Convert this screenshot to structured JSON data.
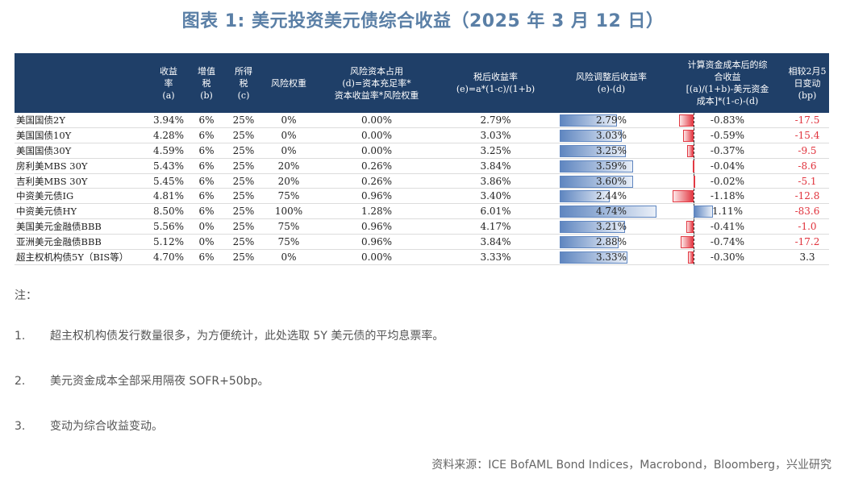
{
  "title": "图表 1:   美元投资美元债综合收益（2025 年 3 月 12 日）",
  "table": {
    "headers": [
      "",
      "收益\n率\n(a)",
      "增值\n税\n(b)",
      "所得\n税\n(c)",
      "风险权重",
      "风险资本占用\n(d)=资本充足率*\n资本收益率*风险权重",
      "税后收益率\n(e)=a*(1-c)/(1+b)",
      "风险调整后收益率\n(e)-(d)",
      "计算资金成本后的综\n合收益\n[(a)/(1+b)-美元资金\n成本]*(1-c)-(d)",
      "相较2月5\n日变动\n(bp)"
    ],
    "rows": [
      {
        "name": "美国国债2Y",
        "a": "3.94%",
        "b": "6%",
        "c": "25%",
        "w": "0%",
        "d": "0.00%",
        "e": "2.79%",
        "adj": "2.79%",
        "adj_v": 2.79,
        "comp": "-0.83%",
        "comp_v": -0.83,
        "chg": "-17.5",
        "chg_neg": true
      },
      {
        "name": "美国国债10Y",
        "a": "4.28%",
        "b": "6%",
        "c": "25%",
        "w": "0%",
        "d": "0.00%",
        "e": "3.03%",
        "adj": "3.03%",
        "adj_v": 3.03,
        "comp": "-0.59%",
        "comp_v": -0.59,
        "chg": "-15.4",
        "chg_neg": true
      },
      {
        "name": "美国国债30Y",
        "a": "4.59%",
        "b": "6%",
        "c": "25%",
        "w": "0%",
        "d": "0.00%",
        "e": "3.25%",
        "adj": "3.25%",
        "adj_v": 3.25,
        "comp": "-0.37%",
        "comp_v": -0.37,
        "chg": "-9.5",
        "chg_neg": true
      },
      {
        "name": "房利美MBS 30Y",
        "a": "5.43%",
        "b": "6%",
        "c": "25%",
        "w": "20%",
        "d": "0.26%",
        "e": "3.84%",
        "adj": "3.59%",
        "adj_v": 3.59,
        "comp": "-0.04%",
        "comp_v": -0.04,
        "chg": "-8.6",
        "chg_neg": true
      },
      {
        "name": "吉利美MBS 30Y",
        "a": "5.45%",
        "b": "6%",
        "c": "25%",
        "w": "20%",
        "d": "0.26%",
        "e": "3.86%",
        "adj": "3.60%",
        "adj_v": 3.6,
        "comp": "-0.02%",
        "comp_v": -0.02,
        "chg": "-5.1",
        "chg_neg": true
      },
      {
        "name": "中资美元债IG",
        "a": "4.81%",
        "b": "6%",
        "c": "25%",
        "w": "75%",
        "d": "0.96%",
        "e": "3.40%",
        "adj": "2.44%",
        "adj_v": 2.44,
        "comp": "-1.18%",
        "comp_v": -1.18,
        "chg": "-12.8",
        "chg_neg": true
      },
      {
        "name": "中资美元债HY",
        "a": "8.50%",
        "b": "6%",
        "c": "25%",
        "w": "100%",
        "d": "1.28%",
        "e": "6.01%",
        "adj": "4.74%",
        "adj_v": 4.74,
        "comp": "1.11%",
        "comp_v": 1.11,
        "chg": "-83.6",
        "chg_neg": true
      },
      {
        "name": "美国美元金融债BBB",
        "a": "5.56%",
        "b": "0%",
        "c": "25%",
        "w": "75%",
        "d": "0.96%",
        "e": "4.17%",
        "adj": "3.21%",
        "adj_v": 3.21,
        "comp": "-0.41%",
        "comp_v": -0.41,
        "chg": "-1.0",
        "chg_neg": true
      },
      {
        "name": "亚洲美元金融债BBB",
        "a": "5.12%",
        "b": "0%",
        "c": "25%",
        "w": "75%",
        "d": "0.96%",
        "e": "3.84%",
        "adj": "2.88%",
        "adj_v": 2.88,
        "comp": "-0.74%",
        "comp_v": -0.74,
        "chg": "-17.2",
        "chg_neg": true
      },
      {
        "name": "超主权机构债5Y（BIS等）",
        "a": "4.70%",
        "b": "6%",
        "c": "25%",
        "w": "0%",
        "d": "0.00%",
        "e": "3.33%",
        "adj": "3.33%",
        "adj_v": 3.33,
        "comp": "-0.30%",
        "comp_v": -0.3,
        "chg": "3.3",
        "chg_neg": false
      }
    ],
    "colors": {
      "header_bg": "#1f3f68",
      "bar_blue": "#5f86c0",
      "bar_red": "#e23a44",
      "neg_text": "#e0323c"
    }
  },
  "notes": {
    "heading": "注：",
    "items": [
      {
        "num": "1.",
        "text": "超主权机构债发行数量很多，为方便统计，此处选取 5Y 美元债的平均息票率。"
      },
      {
        "num": "2.",
        "text": "美元资金成本全部采用隔夜 SOFR+50bp。"
      },
      {
        "num": "3.",
        "text": "变动为综合收益变动。"
      }
    ]
  },
  "source": "资料来源：ICE BofAML Bond Indices，Macrobond，Bloomberg，兴业研究"
}
